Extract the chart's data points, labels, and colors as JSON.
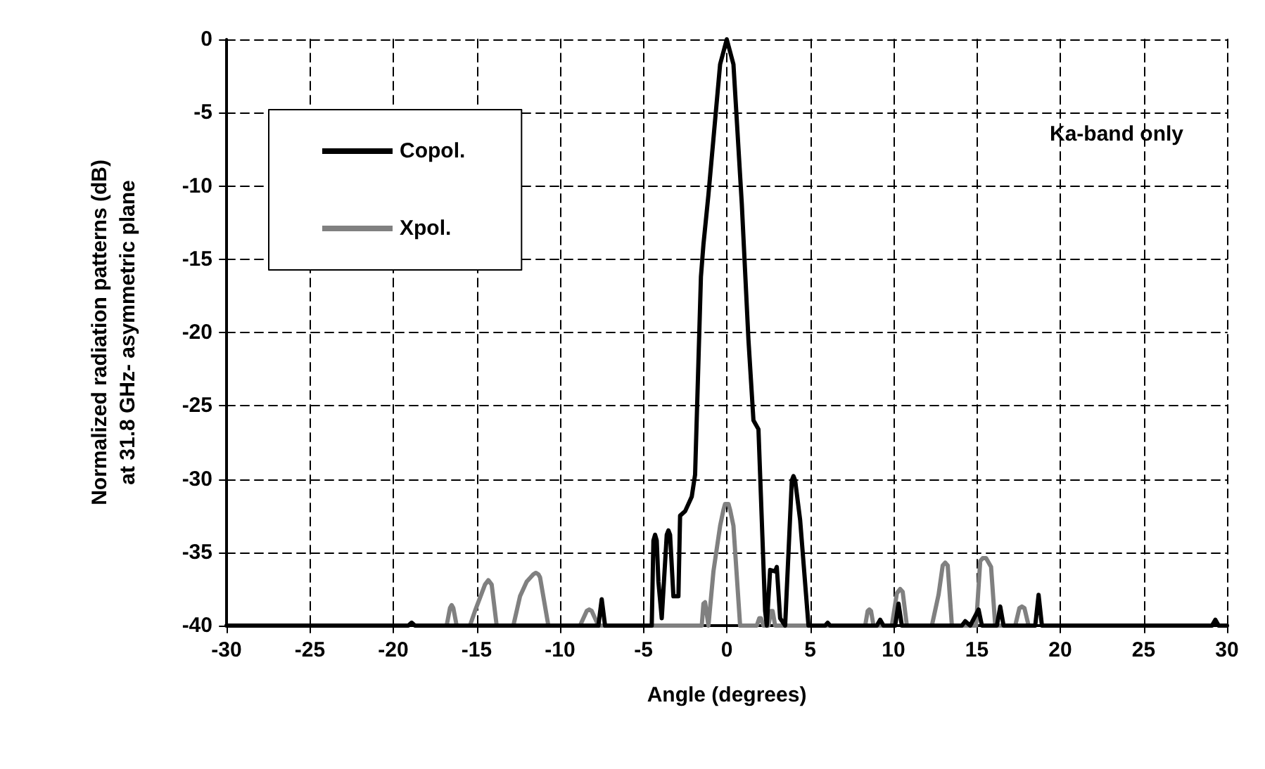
{
  "chart_data": {
    "type": "line",
    "xlabel": "Angle (degrees)",
    "ylabel": "Normalized radiation patterns (dB)\nat 31.8 GHz- asymmetric plane",
    "xlim": [
      -30,
      30
    ],
    "xticks": [
      -30,
      -25,
      -20,
      -15,
      -10,
      -5,
      0,
      5,
      10,
      15,
      20,
      25,
      30
    ],
    "ylim": [
      -40,
      0
    ],
    "yticks": [
      -40,
      -35,
      -30,
      -25,
      -20,
      -15,
      -10,
      -5,
      0
    ],
    "grid": true,
    "legend": "top left",
    "marker": "none",
    "line_style": "solid",
    "annotations": [
      "Ka-band only"
    ],
    "series": [
      {
        "name": "Copol.",
        "color": "#000000",
        "x": [
          -30,
          -19.1,
          -18.9,
          -18.7,
          -7.7,
          -7.5,
          -7.3,
          -4.5,
          -4.4,
          -4.3,
          -4.2,
          -4.1,
          -3.9,
          -3.6,
          -3.5,
          -3.4,
          -3.2,
          -2.9,
          -2.8,
          -2.5,
          -2.1,
          -1.9,
          -1.7,
          -1.55,
          -1.4,
          -1.1,
          -0.4,
          0,
          0.4,
          0.9,
          1.3,
          1.6,
          1.9,
          2,
          2.3,
          2.4,
          2.6,
          2.9,
          3,
          3.2,
          3.5,
          3.9,
          4,
          4.1,
          4.4,
          4.9,
          5.9,
          6.05,
          6.2,
          9,
          9.2,
          9.4,
          10.1,
          10.3,
          10.5,
          14.1,
          14.3,
          14.6,
          15.1,
          15.3,
          16.2,
          16.4,
          16.6,
          18.5,
          18.7,
          18.9,
          29.1,
          29.3,
          29.5,
          30
        ],
        "values": [
          -40,
          -40,
          -39.8,
          -40,
          -40,
          -38.2,
          -40,
          -40,
          -34.2,
          -33.8,
          -34.2,
          -37,
          -39.5,
          -33.8,
          -33.5,
          -33.8,
          -38,
          -38,
          -32.5,
          -32.2,
          -31.2,
          -29.7,
          -22,
          -16.2,
          -14,
          -10.6,
          -1.7,
          0,
          -1.7,
          -11.2,
          -20.5,
          -26,
          -26.6,
          -29.7,
          -39,
          -40,
          -36.2,
          -36.3,
          -36,
          -39.5,
          -40,
          -30.1,
          -29.8,
          -30.1,
          -32.8,
          -40,
          -40,
          -39.8,
          -40,
          -40,
          -39.6,
          -40,
          -40,
          -38.5,
          -40,
          -40,
          -39.7,
          -40,
          -38.9,
          -40,
          -40,
          -38.7,
          -40,
          -40,
          -37.9,
          -40,
          -40,
          -39.6,
          -40,
          -40
        ]
      },
      {
        "name": "Xpol.",
        "color": "#808080",
        "x": [
          -16.8,
          -16.6,
          -16.5,
          -16.4,
          -16.2,
          -15.4,
          -15.1,
          -14.5,
          -14.3,
          -14.1,
          -13.8,
          -12.8,
          -12.4,
          -12,
          -11.6,
          -11.45,
          -11.3,
          -11.2,
          -10.7,
          -8.8,
          -8.4,
          -8.25,
          -8.1,
          -7.7,
          -1.5,
          -1.4,
          -1.3,
          -1.1,
          -0.8,
          -0.4,
          -0.2,
          -0.1,
          0.1,
          0.2,
          0.4,
          0.8,
          1.8,
          1.95,
          2.05,
          2.2,
          2.5,
          2.65,
          2.75,
          2.9,
          8.3,
          8.45,
          8.55,
          8.65,
          8.8,
          9.9,
          10.2,
          10.4,
          10.55,
          10.8,
          12.3,
          12.7,
          12.95,
          13.1,
          13.25,
          13.5,
          14.95,
          15.2,
          15.35,
          15.55,
          15.7,
          15.85,
          16.1,
          17.3,
          17.55,
          17.7,
          17.85,
          18.1
        ],
        "values": [
          -40,
          -38.8,
          -38.6,
          -38.8,
          -40,
          -40,
          -39,
          -37.2,
          -36.9,
          -37.2,
          -40,
          -40,
          -38,
          -37,
          -36.5,
          -36.4,
          -36.5,
          -36.7,
          -40,
          -40,
          -39,
          -38.9,
          -39,
          -40,
          -40,
          -38.5,
          -38.4,
          -40,
          -36.3,
          -33.2,
          -32.1,
          -31.7,
          -31.7,
          -32.1,
          -33.2,
          -40,
          -40,
          -39.5,
          -39.5,
          -40,
          -40,
          -39,
          -39,
          -40,
          -40,
          -39,
          -38.9,
          -39,
          -40,
          -40,
          -37.8,
          -37.5,
          -37.7,
          -40,
          -40,
          -37.9,
          -35.9,
          -35.7,
          -35.9,
          -40,
          -40,
          -35.6,
          -35.4,
          -35.4,
          -35.7,
          -36,
          -40,
          -40,
          -38.8,
          -38.7,
          -38.8,
          -40
        ]
      }
    ]
  }
}
